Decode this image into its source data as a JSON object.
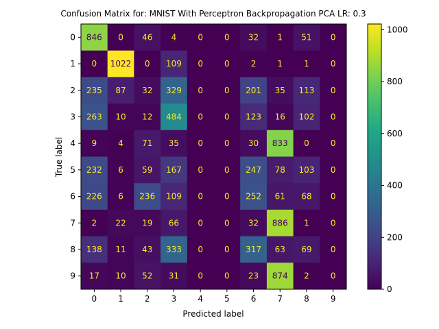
{
  "chart_data": {
    "type": "heatmap",
    "title": "Confusion Matrix for: MNIST With Perceptron Backpropagation PCA LR: 0.3",
    "xlabel": "Predicted label",
    "ylabel": "True label",
    "x_ticks": [
      "0",
      "1",
      "2",
      "3",
      "4",
      "5",
      "6",
      "7",
      "8",
      "9"
    ],
    "y_ticks": [
      "0",
      "1",
      "2",
      "3",
      "4",
      "5",
      "6",
      "7",
      "8",
      "9"
    ],
    "matrix": [
      [
        846,
        0,
        46,
        4,
        0,
        0,
        32,
        1,
        51,
        0
      ],
      [
        0,
        1022,
        0,
        109,
        0,
        0,
        2,
        1,
        1,
        0
      ],
      [
        235,
        87,
        32,
        329,
        0,
        0,
        201,
        35,
        113,
        0
      ],
      [
        263,
        10,
        12,
        484,
        0,
        0,
        123,
        16,
        102,
        0
      ],
      [
        9,
        4,
        71,
        35,
        0,
        0,
        30,
        833,
        0,
        0
      ],
      [
        232,
        6,
        59,
        167,
        0,
        0,
        247,
        78,
        103,
        0
      ],
      [
        226,
        6,
        236,
        109,
        0,
        0,
        252,
        61,
        68,
        0
      ],
      [
        2,
        22,
        19,
        66,
        0,
        0,
        32,
        886,
        1,
        0
      ],
      [
        138,
        11,
        43,
        333,
        0,
        0,
        317,
        63,
        69,
        0
      ],
      [
        17,
        10,
        52,
        31,
        0,
        0,
        23,
        874,
        2,
        0
      ]
    ],
    "colormap": "viridis",
    "colorbar": {
      "range": [
        0,
        1022
      ],
      "ticks": [
        "0",
        "200",
        "400",
        "600",
        "800",
        "1000"
      ]
    },
    "text_colors": {
      "on_dark": "#fde725",
      "on_light": "#440154"
    }
  }
}
